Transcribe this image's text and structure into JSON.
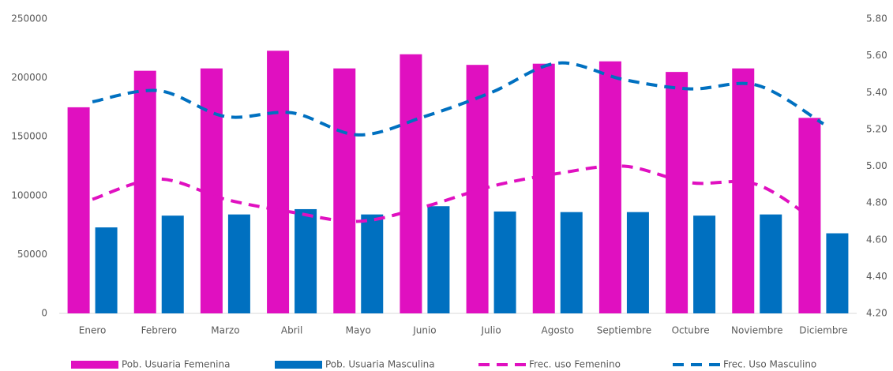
{
  "chart_data": {
    "type": "bar_line_dual",
    "categories": [
      "Enero",
      "Febrero",
      "Marzo",
      "Abril",
      "Mayo",
      "Junio",
      "Julio",
      "Agosto",
      "Septiembre",
      "Octubre",
      "Noviembre",
      "Diciembre"
    ],
    "series": [
      {
        "name": "Pob. Usuaria Femenina",
        "color": "#e010c0",
        "kind": "bar",
        "values": [
          175000,
          206000,
          208000,
          223000,
          208000,
          220000,
          211000,
          212000,
          214000,
          205000,
          208000,
          166000
        ]
      },
      {
        "name": "Pob. Usuaria Masculina",
        "color": "#0070c0",
        "kind": "bar",
        "values": [
          73000,
          83000,
          84000,
          88500,
          84000,
          91000,
          86500,
          86000,
          86000,
          83000,
          84000,
          68000
        ]
      },
      {
        "name": "Frec. uso Femenino",
        "color": "#e010c0",
        "kind": "line",
        "axis": "y2",
        "values": [
          4.82,
          4.93,
          4.82,
          4.75,
          4.7,
          4.78,
          4.89,
          4.96,
          5.0,
          4.91,
          4.9,
          4.67
        ]
      },
      {
        "name": "Frec. Uso Masculino",
        "color": "#0070c0",
        "kind": "line",
        "axis": "y2",
        "values": [
          5.35,
          5.41,
          5.27,
          5.29,
          5.17,
          5.27,
          5.4,
          5.56,
          5.47,
          5.42,
          5.44,
          5.23
        ]
      }
    ],
    "ylim": [
      0,
      250000
    ],
    "yticks": [
      0,
      50000,
      100000,
      150000,
      200000,
      250000
    ],
    "y2lim": [
      4.2,
      5.8
    ],
    "y2ticks": [
      {
        "value": 4.2,
        "label": "4.20"
      },
      {
        "value": 4.4,
        "label": "4.40"
      },
      {
        "value": 4.6,
        "label": "4.60"
      },
      {
        "value": 4.8,
        "label": "4.80"
      },
      {
        "value": 5.0,
        "label": "5.00"
      },
      {
        "value": 5.2,
        "label": "5.20"
      },
      {
        "value": 5.4,
        "label": "5.40"
      },
      {
        "value": 5.6,
        "label": "5.60"
      },
      {
        "value": 5.8,
        "label": "5.80"
      }
    ],
    "legend": "bottom"
  }
}
